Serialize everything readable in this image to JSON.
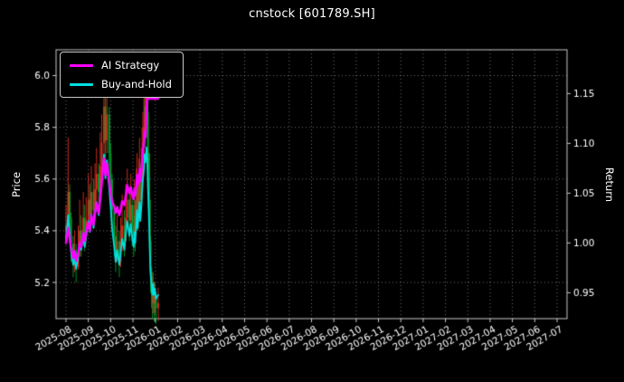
{
  "title": "cnstock [601789.SH]",
  "legend": [
    {
      "label": "AI Strategy",
      "color": "#ff00ff"
    },
    {
      "label": "Buy-and-Hold",
      "color": "#00e0e0"
    }
  ],
  "axes": {
    "y_left": {
      "label": "Price",
      "ticks": [
        5.2,
        5.4,
        5.6,
        5.8,
        6.0
      ],
      "range": [
        5.06,
        6.1
      ]
    },
    "y_right": {
      "label": "Return",
      "ticks": [
        0.95,
        1.0,
        1.05,
        1.1,
        1.15
      ],
      "range": [
        0.924,
        1.194
      ]
    }
  },
  "chart_data": {
    "type": "line",
    "title": "cnstock [601789.SH]",
    "xlabel": "",
    "ylabel_left": "Price",
    "ylabel_right": "Return",
    "grid": "dotted",
    "background": "black",
    "legend_position": "upper left",
    "x_tick_labels": [
      "2025-08",
      "2025-09",
      "2025-10",
      "2025-11",
      "2026-01",
      "2026-02",
      "2026-03",
      "2026-04",
      "2026-05",
      "2026-06",
      "2026-07",
      "2026-08",
      "2026-09",
      "2026-10",
      "2026-11",
      "2026-12",
      "2027-01",
      "2027-02",
      "2027-03",
      "2027-04",
      "2027-05",
      "2027-06",
      "2027-07"
    ],
    "dates": [
      "2025-08-01",
      "2025-08-04",
      "2025-08-06",
      "2025-08-08",
      "2025-08-11",
      "2025-08-13",
      "2025-08-15",
      "2025-08-18",
      "2025-08-20",
      "2025-08-22",
      "2025-08-25",
      "2025-08-27",
      "2025-08-29",
      "2025-09-01",
      "2025-09-03",
      "2025-09-05",
      "2025-09-08",
      "2025-09-10",
      "2025-09-12",
      "2025-09-15",
      "2025-09-17",
      "2025-09-19",
      "2025-09-22",
      "2025-09-24",
      "2025-09-26",
      "2025-09-29",
      "2025-10-01",
      "2025-10-03",
      "2025-10-06",
      "2025-10-08",
      "2025-10-10",
      "2025-10-13",
      "2025-10-15",
      "2025-10-17",
      "2025-10-20",
      "2025-10-22",
      "2025-10-24",
      "2025-10-27",
      "2025-10-29",
      "2025-10-31",
      "2025-11-03",
      "2025-11-05",
      "2025-11-07",
      "2025-11-10",
      "2025-11-12",
      "2025-11-14",
      "2025-11-17",
      "2025-11-19",
      "2025-11-21",
      "2025-11-24",
      "2025-11-26",
      "2025-11-28",
      "2025-12-01",
      "2025-12-03",
      "2025-12-05",
      "2025-12-08",
      "2025-12-10",
      "2025-12-12",
      "2025-12-15",
      "2025-12-17",
      "2025-12-19",
      "2025-12-22",
      "2025-12-24",
      "2025-12-26",
      "2025-12-29",
      "2025-12-31",
      "2026-01-02",
      "2026-01-05"
    ],
    "series": [
      {
        "name": "Price",
        "style": "candlestick",
        "axis": "left",
        "up_color": "#e03020",
        "down_color": "#00a12e",
        "open": [
          5.4,
          5.42,
          5.55,
          5.45,
          5.35,
          5.28,
          5.32,
          5.26,
          5.33,
          5.4,
          5.36,
          5.45,
          5.38,
          5.44,
          5.52,
          5.46,
          5.55,
          5.48,
          5.56,
          5.62,
          5.55,
          5.65,
          5.74,
          5.88,
          5.75,
          5.85,
          5.7,
          5.6,
          5.48,
          5.38,
          5.3,
          5.36,
          5.28,
          5.35,
          5.42,
          5.36,
          5.45,
          5.52,
          5.44,
          5.5,
          5.42,
          5.38,
          5.46,
          5.4,
          5.5,
          5.58,
          5.48,
          5.56,
          5.62,
          5.52,
          5.6,
          5.68,
          5.74,
          5.8,
          5.88,
          5.84,
          5.92,
          5.86,
          5.7,
          5.52,
          5.36,
          5.24,
          5.16,
          5.12,
          5.18,
          5.12,
          5.15,
          5.1
        ],
        "high": [
          5.5,
          5.76,
          5.58,
          5.47,
          5.38,
          5.4,
          5.35,
          5.42,
          5.52,
          5.46,
          5.55,
          5.5,
          5.53,
          5.62,
          5.58,
          5.65,
          5.6,
          5.66,
          5.72,
          5.66,
          5.78,
          5.85,
          5.97,
          5.92,
          5.95,
          5.88,
          5.74,
          5.62,
          5.5,
          5.42,
          5.46,
          5.4,
          5.45,
          5.54,
          5.48,
          5.58,
          5.64,
          5.56,
          5.62,
          5.55,
          5.5,
          5.6,
          5.52,
          5.64,
          5.7,
          5.62,
          5.68,
          5.76,
          5.66,
          5.72,
          5.8,
          5.86,
          5.92,
          5.98,
          5.96,
          6.0,
          5.98,
          5.9,
          5.7,
          5.52,
          5.38,
          5.26,
          5.22,
          5.24,
          5.2,
          5.2,
          5.16,
          5.18
        ],
        "low": [
          5.36,
          5.4,
          5.38,
          5.28,
          5.22,
          5.24,
          5.2,
          5.25,
          5.3,
          5.3,
          5.34,
          5.32,
          5.36,
          5.42,
          5.4,
          5.44,
          5.42,
          5.46,
          5.5,
          5.48,
          5.52,
          5.6,
          5.7,
          5.65,
          5.7,
          5.6,
          5.52,
          5.4,
          5.3,
          5.24,
          5.28,
          5.22,
          5.26,
          5.32,
          5.3,
          5.36,
          5.42,
          5.36,
          5.4,
          5.34,
          5.3,
          5.36,
          5.32,
          5.4,
          5.46,
          5.4,
          5.46,
          5.5,
          5.44,
          5.48,
          5.55,
          5.6,
          5.66,
          5.74,
          5.72,
          5.8,
          5.76,
          5.6,
          5.44,
          5.28,
          5.16,
          5.1,
          5.06,
          5.08,
          5.05,
          5.08,
          5.04,
          5.05
        ],
        "close": [
          5.42,
          5.55,
          5.45,
          5.35,
          5.28,
          5.32,
          5.26,
          5.33,
          5.4,
          5.36,
          5.45,
          5.38,
          5.44,
          5.52,
          5.46,
          5.55,
          5.48,
          5.56,
          5.62,
          5.55,
          5.65,
          5.74,
          5.88,
          5.75,
          5.85,
          5.7,
          5.6,
          5.48,
          5.38,
          5.3,
          5.36,
          5.28,
          5.35,
          5.42,
          5.36,
          5.45,
          5.52,
          5.44,
          5.5,
          5.42,
          5.38,
          5.46,
          5.4,
          5.5,
          5.58,
          5.48,
          5.56,
          5.62,
          5.52,
          5.6,
          5.68,
          5.74,
          5.8,
          5.88,
          5.84,
          5.92,
          5.86,
          5.7,
          5.52,
          5.36,
          5.24,
          5.16,
          5.12,
          5.18,
          5.12,
          5.15,
          5.1,
          5.12
        ]
      },
      {
        "name": "AI Strategy",
        "style": "line",
        "axis": "right",
        "color": "#ff00ff",
        "values": [
          1.0,
          1.015,
          1.005,
          0.995,
          0.985,
          0.992,
          0.982,
          0.99,
          1.0,
          0.996,
          1.01,
          1.002,
          1.012,
          1.02,
          1.012,
          1.028,
          1.018,
          1.03,
          1.04,
          1.03,
          1.045,
          1.06,
          1.085,
          1.068,
          1.08,
          1.062,
          1.05,
          1.042,
          1.036,
          1.03,
          1.036,
          1.028,
          1.034,
          1.042,
          1.038,
          1.048,
          1.058,
          1.05,
          1.056,
          1.048,
          1.044,
          1.054,
          1.048,
          1.058,
          1.068,
          1.058,
          1.066,
          1.074,
          1.062,
          1.072,
          1.084,
          1.092,
          1.102,
          1.112,
          1.106,
          1.13,
          1.147,
          1.145,
          1.145,
          1.145,
          1.145,
          1.145,
          1.145,
          1.145,
          1.145,
          1.145,
          1.145,
          1.145
        ]
      },
      {
        "name": "Buy-and-Hold",
        "style": "line",
        "axis": "right",
        "color": "#00e0e0",
        "values": [
          1.004,
          1.028,
          1.009,
          0.991,
          0.978,
          0.985,
          0.974,
          0.987,
          1.0,
          0.993,
          1.009,
          0.996,
          1.007,
          1.022,
          1.011,
          1.028,
          1.015,
          1.03,
          1.041,
          1.028,
          1.046,
          1.063,
          1.089,
          1.065,
          1.083,
          1.056,
          1.037,
          1.015,
          0.996,
          0.981,
          0.993,
          0.978,
          0.991,
          1.004,
          0.993,
          1.009,
          1.022,
          1.007,
          1.019,
          1.004,
          0.996,
          1.011,
          1.0,
          1.019,
          1.033,
          1.015,
          1.03,
          1.041,
          1.022,
          1.037,
          1.052,
          1.063,
          1.074,
          1.089,
          1.081,
          1.096,
          1.085,
          1.056,
          1.022,
          0.993,
          0.97,
          0.956,
          0.948,
          0.959,
          0.948,
          0.954,
          0.944,
          0.948
        ]
      }
    ]
  }
}
